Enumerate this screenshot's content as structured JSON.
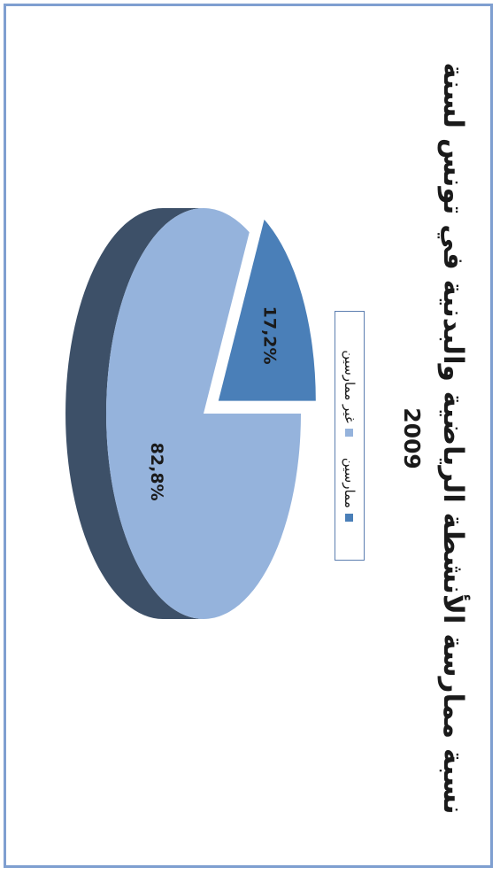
{
  "chart_data": {
    "type": "pie",
    "title": "نسبة ممارسة الأنشطة الرياضية والبدنية في تونس لسنة",
    "subtitle": "2009",
    "categories": [
      "ممارسين",
      "غير ممارسين"
    ],
    "values": [
      17.2,
      82.8
    ],
    "data_labels": [
      "17,2%",
      "82,8%"
    ],
    "colors": [
      "#4a7fb8",
      "#95b3dc"
    ],
    "side_colors": [
      "#1f3a57",
      "#3d5068"
    ],
    "legend_position": "top",
    "style": "3d-exploded"
  }
}
